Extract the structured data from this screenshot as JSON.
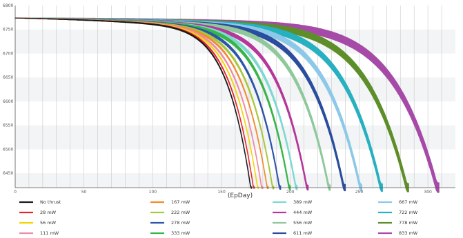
{
  "chart_data": {
    "type": "line",
    "title": "",
    "xlabel": "(EpDay)",
    "ylabel": "",
    "xlim": [
      0,
      320
    ],
    "ylim": [
      6420,
      6800
    ],
    "x_ticks": [
      0,
      50,
      100,
      150,
      200,
      250,
      300
    ],
    "y_ticks": [
      6450,
      6500,
      6550,
      6600,
      6650,
      6700,
      6750,
      6800
    ],
    "grid": true,
    "legend_position": "bottom",
    "start_value": 6774,
    "series": [
      {
        "name": "No thrust",
        "color": "#1a1a1a",
        "end_day": 172,
        "band": 1
      },
      {
        "name": "28 mW",
        "color": "#e8242a",
        "end_day": 174,
        "band": 1
      },
      {
        "name": "56 mW",
        "color": "#f2d500",
        "end_day": 177,
        "band": 1
      },
      {
        "name": "111 mW",
        "color": "#ef8aa6",
        "end_day": 180,
        "band": 1.5
      },
      {
        "name": "167 mW",
        "color": "#f28b2e",
        "end_day": 184,
        "band": 1.5
      },
      {
        "name": "222 mW",
        "color": "#a6c83a",
        "end_day": 188,
        "band": 2
      },
      {
        "name": "278 mW",
        "color": "#2d55a8",
        "end_day": 193,
        "band": 2.5
      },
      {
        "name": "333 mW",
        "color": "#38b549",
        "end_day": 200,
        "band": 3
      },
      {
        "name": "389 mW",
        "color": "#7dd8d0",
        "end_day": 205,
        "band": 3
      },
      {
        "name": "444 mW",
        "color": "#b5379a",
        "end_day": 213,
        "band": 3.5
      },
      {
        "name": "556 mW",
        "color": "#8fc89a",
        "end_day": 229,
        "band": 4
      },
      {
        "name": "611 mW",
        "color": "#2b4d9e",
        "end_day": 240,
        "band": 4.5
      },
      {
        "name": "667 mW",
        "color": "#8cc8e8",
        "end_day": 252,
        "band": 5
      },
      {
        "name": "722 mW",
        "color": "#27b0c0",
        "end_day": 267,
        "band": 5.5
      },
      {
        "name": "778 mW",
        "color": "#5e8e2a",
        "end_day": 286,
        "band": 6
      },
      {
        "name": "833 mW",
        "color": "#a64aa8",
        "end_day": 308,
        "band": 7
      }
    ]
  }
}
